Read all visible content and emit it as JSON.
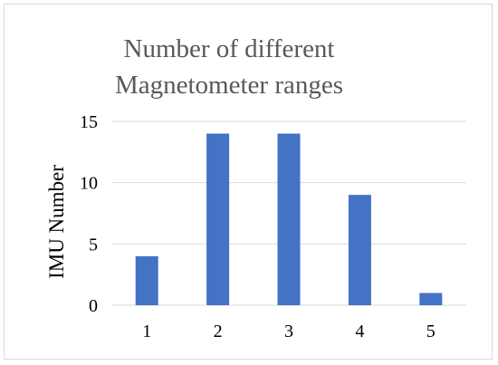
{
  "chart_data": {
    "type": "bar",
    "title_lines": [
      "Number of different",
      "Magnetometer ranges"
    ],
    "xlabel": "",
    "ylabel": "IMU Number",
    "categories": [
      "1",
      "2",
      "3",
      "4",
      "5"
    ],
    "values": [
      4,
      14,
      14,
      9,
      1
    ],
    "ylim": [
      0,
      15
    ],
    "yticks": [
      0,
      5,
      10,
      15
    ],
    "grid": true,
    "legend": false,
    "colors": {
      "bar": "#4472C4",
      "grid": "#d9d9d9",
      "title": "#595959"
    }
  }
}
